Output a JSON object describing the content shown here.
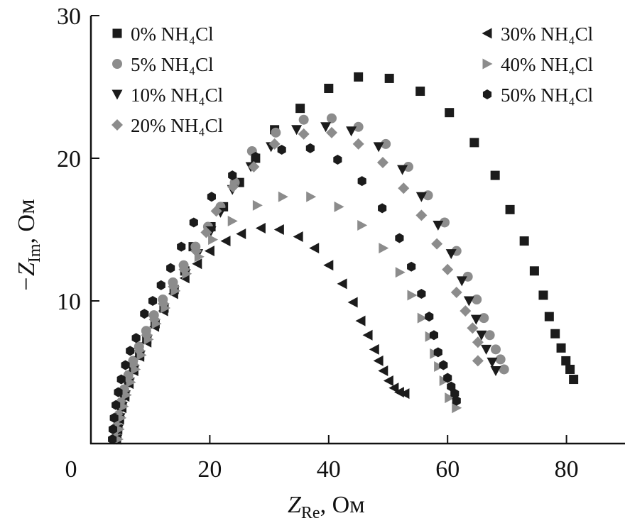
{
  "chart_data": {
    "type": "scatter",
    "title": "",
    "xlabel": {
      "main": "Z",
      "sub": "Re",
      "unit": ", Ом"
    },
    "ylabel": {
      "main": "−Z",
      "sub": "Im",
      "unit": ", Ом"
    },
    "xlim": [
      0,
      90
    ],
    "ylim": [
      0,
      30
    ],
    "xticks": [
      0,
      20,
      40,
      60,
      80
    ],
    "yticks": [
      10,
      20,
      30
    ],
    "grid": false,
    "legend_placement": "top (two columns)",
    "colors": {
      "black": "#1b1b1b",
      "gray": "#8c8c8c"
    },
    "series": [
      {
        "name": "0% NH₄Cl",
        "marker": "square",
        "color": "black",
        "points": [
          [
            4.3,
            0.3
          ],
          [
            4.5,
            1.0
          ],
          [
            4.8,
            1.8
          ],
          [
            5.2,
            2.6
          ],
          [
            5.7,
            3.4
          ],
          [
            6.4,
            4.3
          ],
          [
            7.2,
            5.2
          ],
          [
            8.2,
            6.2
          ],
          [
            9.4,
            7.3
          ],
          [
            10.8,
            8.4
          ],
          [
            12.3,
            9.5
          ],
          [
            14.0,
            10.8
          ],
          [
            15.8,
            12.1
          ],
          [
            17.2,
            13.8
          ],
          [
            20.2,
            15.2
          ],
          [
            22.3,
            16.6
          ],
          [
            25.0,
            18.3
          ],
          [
            27.7,
            20.0
          ],
          [
            30.9,
            22.0
          ],
          [
            35.2,
            23.5
          ],
          [
            40.0,
            24.9
          ],
          [
            45.0,
            25.7
          ],
          [
            50.2,
            25.6
          ],
          [
            55.4,
            24.7
          ],
          [
            60.3,
            23.2
          ],
          [
            64.5,
            21.1
          ],
          [
            68.0,
            18.8
          ],
          [
            70.5,
            16.4
          ],
          [
            72.9,
            14.2
          ],
          [
            74.6,
            12.1
          ],
          [
            76.1,
            10.4
          ],
          [
            77.1,
            8.9
          ],
          [
            78.1,
            7.7
          ],
          [
            79.1,
            6.7
          ],
          [
            79.9,
            5.8
          ],
          [
            80.6,
            5.2
          ],
          [
            81.2,
            4.5
          ]
        ]
      },
      {
        "name": "5% NH₄Cl",
        "marker": "circle",
        "color": "gray",
        "points": [
          [
            4.2,
            0.4
          ],
          [
            4.4,
            1.2
          ],
          [
            4.7,
            2.0
          ],
          [
            5.1,
            2.9
          ],
          [
            5.6,
            3.8
          ],
          [
            6.3,
            4.8
          ],
          [
            7.1,
            5.8
          ],
          [
            8.1,
            6.8
          ],
          [
            9.3,
            7.9
          ],
          [
            10.6,
            9.0
          ],
          [
            12.1,
            10.1
          ],
          [
            13.8,
            11.3
          ],
          [
            15.6,
            12.5
          ],
          [
            17.6,
            13.8
          ],
          [
            19.7,
            15.2
          ],
          [
            21.8,
            16.6
          ],
          [
            24.2,
            18.3
          ],
          [
            27.1,
            20.5
          ],
          [
            31.1,
            21.8
          ],
          [
            35.8,
            22.7
          ],
          [
            40.5,
            22.8
          ],
          [
            45.0,
            22.2
          ],
          [
            49.6,
            21.0
          ],
          [
            53.4,
            19.4
          ],
          [
            56.7,
            17.4
          ],
          [
            59.5,
            15.5
          ],
          [
            61.5,
            13.5
          ],
          [
            63.4,
            11.7
          ],
          [
            64.9,
            10.1
          ],
          [
            66.1,
            8.8
          ],
          [
            67.1,
            7.6
          ],
          [
            68.1,
            6.6
          ],
          [
            68.9,
            5.9
          ],
          [
            69.5,
            5.2
          ]
        ]
      },
      {
        "name": "10% NH₄Cl",
        "marker": "triangle-down",
        "color": "black",
        "points": [
          [
            4.4,
            0.3
          ],
          [
            4.6,
            1.0
          ],
          [
            4.9,
            1.8
          ],
          [
            5.3,
            2.6
          ],
          [
            5.8,
            3.4
          ],
          [
            6.5,
            4.3
          ],
          [
            7.3,
            5.2
          ],
          [
            8.3,
            6.2
          ],
          [
            9.5,
            7.3
          ],
          [
            10.8,
            8.4
          ],
          [
            12.3,
            9.5
          ],
          [
            14.0,
            10.7
          ],
          [
            15.9,
            11.9
          ],
          [
            18.0,
            13.3
          ],
          [
            20.2,
            14.9
          ],
          [
            21.8,
            16.2
          ],
          [
            23.8,
            17.8
          ],
          [
            26.9,
            19.4
          ],
          [
            30.3,
            20.8
          ],
          [
            34.6,
            22.0
          ],
          [
            39.5,
            22.2
          ],
          [
            43.8,
            21.9
          ],
          [
            48.4,
            20.8
          ],
          [
            52.4,
            19.2
          ],
          [
            55.6,
            17.3
          ],
          [
            58.4,
            15.3
          ],
          [
            60.6,
            13.3
          ],
          [
            62.4,
            11.4
          ],
          [
            63.6,
            10.0
          ],
          [
            64.8,
            8.7
          ],
          [
            65.7,
            7.6
          ],
          [
            66.5,
            6.6
          ],
          [
            67.5,
            5.7
          ],
          [
            68.1,
            5.1
          ]
        ]
      },
      {
        "name": "20% NH₄Cl",
        "marker": "diamond",
        "color": "gray",
        "points": [
          [
            4.3,
            0.4
          ],
          [
            4.5,
            1.1
          ],
          [
            4.8,
            1.9
          ],
          [
            5.2,
            2.7
          ],
          [
            5.7,
            3.6
          ],
          [
            6.4,
            4.5
          ],
          [
            7.2,
            5.5
          ],
          [
            8.2,
            6.5
          ],
          [
            9.4,
            7.6
          ],
          [
            10.7,
            8.7
          ],
          [
            12.2,
            9.8
          ],
          [
            13.9,
            11.0
          ],
          [
            15.7,
            12.2
          ],
          [
            17.7,
            13.5
          ],
          [
            19.4,
            14.8
          ],
          [
            21.1,
            16.3
          ],
          [
            23.9,
            18.0
          ],
          [
            27.4,
            19.4
          ],
          [
            30.9,
            21.0
          ],
          [
            35.8,
            21.7
          ],
          [
            40.5,
            21.8
          ],
          [
            45.0,
            21.0
          ],
          [
            49.1,
            19.7
          ],
          [
            52.6,
            17.9
          ],
          [
            55.6,
            16.0
          ],
          [
            58.2,
            14.0
          ],
          [
            60.0,
            12.2
          ],
          [
            61.5,
            10.6
          ],
          [
            63.0,
            9.3
          ],
          [
            64.2,
            8.1
          ],
          [
            65.1,
            7.1
          ],
          [
            65.1,
            5.8
          ]
        ]
      },
      {
        "name": "30% NH₄Cl",
        "marker": "triangle-left",
        "color": "black",
        "points": [
          [
            4.3,
            0.3
          ],
          [
            4.5,
            1.0
          ],
          [
            4.8,
            1.7
          ],
          [
            5.2,
            2.5
          ],
          [
            5.7,
            3.3
          ],
          [
            6.4,
            4.2
          ],
          [
            7.2,
            5.1
          ],
          [
            8.2,
            6.1
          ],
          [
            9.4,
            7.1
          ],
          [
            10.7,
            8.2
          ],
          [
            12.2,
            9.3
          ],
          [
            13.9,
            10.5
          ],
          [
            15.8,
            11.6
          ],
          [
            17.9,
            12.6
          ],
          [
            20.0,
            13.5
          ],
          [
            22.7,
            14.2
          ],
          [
            25.3,
            14.7
          ],
          [
            28.6,
            15.1
          ],
          [
            31.7,
            15.0
          ],
          [
            34.9,
            14.5
          ],
          [
            37.6,
            13.7
          ],
          [
            40.0,
            12.5
          ],
          [
            42.3,
            11.2
          ],
          [
            44.1,
            9.9
          ],
          [
            45.4,
            8.6
          ],
          [
            46.6,
            7.6
          ],
          [
            47.7,
            6.6
          ],
          [
            48.4,
            5.8
          ],
          [
            49.2,
            5.1
          ],
          [
            50.1,
            4.4
          ],
          [
            51.0,
            3.9
          ],
          [
            51.9,
            3.6
          ],
          [
            52.8,
            3.5
          ]
        ]
      },
      {
        "name": "40% NH₄Cl",
        "marker": "triangle-right",
        "color": "gray",
        "points": [
          [
            4.6,
            0.3
          ],
          [
            4.8,
            1.0
          ],
          [
            5.1,
            1.8
          ],
          [
            5.5,
            2.6
          ],
          [
            6.0,
            3.4
          ],
          [
            6.7,
            4.3
          ],
          [
            7.5,
            5.2
          ],
          [
            8.5,
            6.2
          ],
          [
            9.7,
            7.3
          ],
          [
            11.0,
            8.4
          ],
          [
            12.5,
            9.5
          ],
          [
            14.2,
            10.7
          ],
          [
            16.1,
            11.9
          ],
          [
            18.2,
            13.1
          ],
          [
            20.5,
            14.3
          ],
          [
            23.8,
            15.6
          ],
          [
            28.0,
            16.7
          ],
          [
            32.3,
            17.3
          ],
          [
            37.0,
            17.3
          ],
          [
            41.7,
            16.6
          ],
          [
            45.6,
            15.3
          ],
          [
            49.2,
            13.7
          ],
          [
            52.0,
            12.0
          ],
          [
            54.0,
            10.4
          ],
          [
            55.7,
            8.8
          ],
          [
            57.0,
            7.5
          ],
          [
            57.8,
            6.3
          ],
          [
            58.5,
            5.4
          ],
          [
            59.4,
            4.4
          ],
          [
            60.3,
            3.2
          ],
          [
            61.5,
            2.5
          ]
        ]
      },
      {
        "name": "50% NH₄Cl",
        "marker": "hexagon",
        "color": "black",
        "points": [
          [
            3.6,
            0.3
          ],
          [
            3.7,
            1.0
          ],
          [
            3.9,
            1.8
          ],
          [
            4.2,
            2.7
          ],
          [
            4.6,
            3.6
          ],
          [
            5.1,
            4.5
          ],
          [
            5.8,
            5.5
          ],
          [
            6.6,
            6.5
          ],
          [
            7.6,
            7.4
          ],
          [
            9.0,
            9.1
          ],
          [
            10.4,
            10.0
          ],
          [
            11.8,
            11.1
          ],
          [
            13.4,
            12.3
          ],
          [
            15.2,
            13.8
          ],
          [
            17.3,
            15.5
          ],
          [
            20.3,
            17.3
          ],
          [
            23.8,
            18.8
          ],
          [
            27.7,
            20.1
          ],
          [
            32.1,
            20.6
          ],
          [
            36.9,
            20.7
          ],
          [
            41.5,
            19.9
          ],
          [
            45.6,
            18.4
          ],
          [
            49.0,
            16.5
          ],
          [
            51.9,
            14.4
          ],
          [
            53.9,
            12.4
          ],
          [
            55.6,
            10.5
          ],
          [
            56.9,
            8.9
          ],
          [
            57.7,
            7.6
          ],
          [
            58.4,
            6.4
          ],
          [
            59.3,
            5.5
          ],
          [
            60.0,
            4.6
          ],
          [
            60.6,
            4.0
          ],
          [
            61.2,
            3.5
          ],
          [
            61.5,
            3.0
          ]
        ]
      }
    ]
  }
}
